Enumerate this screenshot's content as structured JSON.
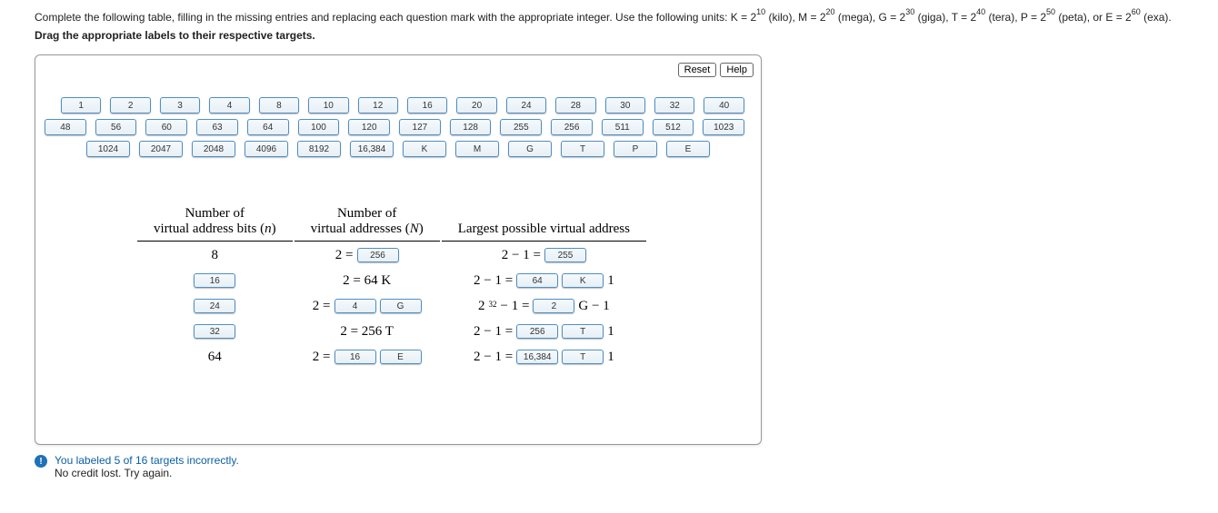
{
  "instructions": {
    "line1_prefix": "Complete the following table, filling in the missing entries and replacing each question mark with the appropriate integer. Use the following units: K = 2",
    "k_exp": "10",
    "k_label": " (kilo), M = 2",
    "m_exp": "20",
    "m_label": " (mega), G = 2",
    "g_exp": "30",
    "g_label": " (giga), T = 2",
    "t_exp": "40",
    "t_label": " (tera), P = 2",
    "p_exp": "50",
    "p_label": " (peta), or E = 2",
    "e_exp": "60",
    "e_label": " (exa).",
    "line2": "Drag the appropriate labels to their respective targets."
  },
  "buttons": {
    "reset": "Reset",
    "help": "Help"
  },
  "tiles": {
    "row1": [
      "1",
      "2",
      "3",
      "4",
      "8",
      "10",
      "12",
      "16",
      "20",
      "24",
      "28",
      "30",
      "32",
      "40"
    ],
    "row2": [
      "48",
      "56",
      "60",
      "63",
      "64",
      "100",
      "120",
      "127",
      "128",
      "255",
      "256",
      "511",
      "512",
      "1023"
    ],
    "row3": [
      "1024",
      "2047",
      "2048",
      "4096",
      "8192",
      "16,384",
      "K",
      "M",
      "G",
      "T",
      "P",
      "E"
    ]
  },
  "headers": {
    "c1a": "Number of",
    "c1b": "virtual address bits (",
    "c1var": "n",
    "c1c": ")",
    "c2a": "Number of",
    "c2b": "virtual addresses (",
    "c2var": "N",
    "c2c": ")",
    "c3": "Largest possible virtual address"
  },
  "rows": {
    "r1": {
      "col1_static": "8",
      "col2_pre": "2  =",
      "col2_d1": "256",
      "col3_pre": "2   − 1 =",
      "col3_d1": "255"
    },
    "r2": {
      "col1_d": "16",
      "col2_static": "2  =    64 K",
      "col3_pre": "2   − 1 =",
      "col3_d1": "64",
      "col3_d2": "K",
      "col3_post": "  1"
    },
    "r3": {
      "col1_d": "24",
      "col2_pre": "2  =",
      "col2_d1": "4",
      "col2_d2": "G",
      "col3_pre_a": "2",
      "col3_sup": "32",
      "col3_pre_b": " − 1 =",
      "col3_d1": "2",
      "col3_post": "G − 1"
    },
    "r4": {
      "col1_d": "32",
      "col2_static": "2  =   256 T",
      "col3_pre": "2   − 1 =",
      "col3_d1": "256",
      "col3_d2": "T",
      "col3_post": "  1"
    },
    "r5": {
      "col1_static": "64",
      "col2_pre": "2  =",
      "col2_d1": "16",
      "col2_d2": "E",
      "col3_pre": "2   − 1 =",
      "col3_d1": "16,384",
      "col3_d2": "T",
      "col3_post": "  1"
    }
  },
  "feedback": {
    "l1": "You labeled 5 of 16 targets incorrectly.",
    "l2": "No credit lost. Try again."
  },
  "colors": {
    "tile_border": "#508ec4",
    "tile_grad_top": "#f4f9fc",
    "tile_grad_bot": "#e7f0f6",
    "link_blue": "#0b5fa5",
    "info_bg": "#1f71b8"
  }
}
